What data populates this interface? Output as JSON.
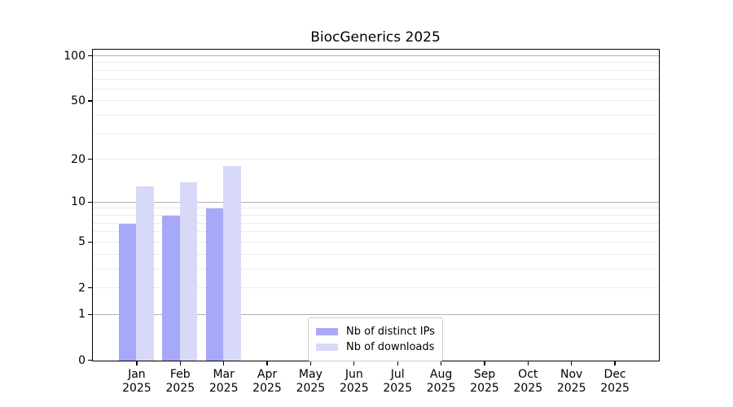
{
  "title": "BiocGenerics 2025",
  "chart_data": {
    "type": "bar",
    "title": "BiocGenerics 2025",
    "categories": [
      "Jan",
      "Feb",
      "Mar",
      "Apr",
      "May",
      "Jun",
      "Jul",
      "Aug",
      "Sep",
      "Oct",
      "Nov",
      "Dec"
    ],
    "category_year": "2025",
    "series": [
      {
        "name": "Nb of distinct IPs",
        "color": "#a8a8f8",
        "values": [
          7,
          8,
          9,
          0,
          0,
          0,
          0,
          0,
          0,
          0,
          0,
          0
        ]
      },
      {
        "name": "Nb of downloads",
        "color": "#d8d8f8",
        "values": [
          13,
          14,
          18,
          0,
          0,
          0,
          0,
          0,
          0,
          0,
          0,
          0
        ]
      }
    ],
    "xlabel": "",
    "ylabel": "",
    "y_axis": {
      "scale": "log1p",
      "tick_values": [
        0,
        1,
        2,
        5,
        10,
        20,
        50,
        100
      ],
      "tick_labels": [
        "0",
        "1",
        "2",
        "5",
        "10",
        "20",
        "50",
        "100"
      ],
      "ylim_top": 113
    },
    "grid": {
      "minor_lines": [
        2,
        3,
        4,
        5,
        6,
        7,
        8,
        9,
        20,
        30,
        40,
        50,
        60,
        70,
        80,
        90
      ],
      "major_lines": [
        1,
        10,
        100
      ]
    },
    "legend": {
      "position": "lower center",
      "entries": [
        "Nb of distinct IPs",
        "Nb of downloads"
      ]
    }
  },
  "colors": {
    "distinct_ips_bar": "#a8a8f8",
    "downloads_bar": "#d8d8f8",
    "major_grid": "#b0b0b0",
    "minor_grid": "#ebebeb",
    "spine": "#000000",
    "legend_border": "#cccccc"
  }
}
